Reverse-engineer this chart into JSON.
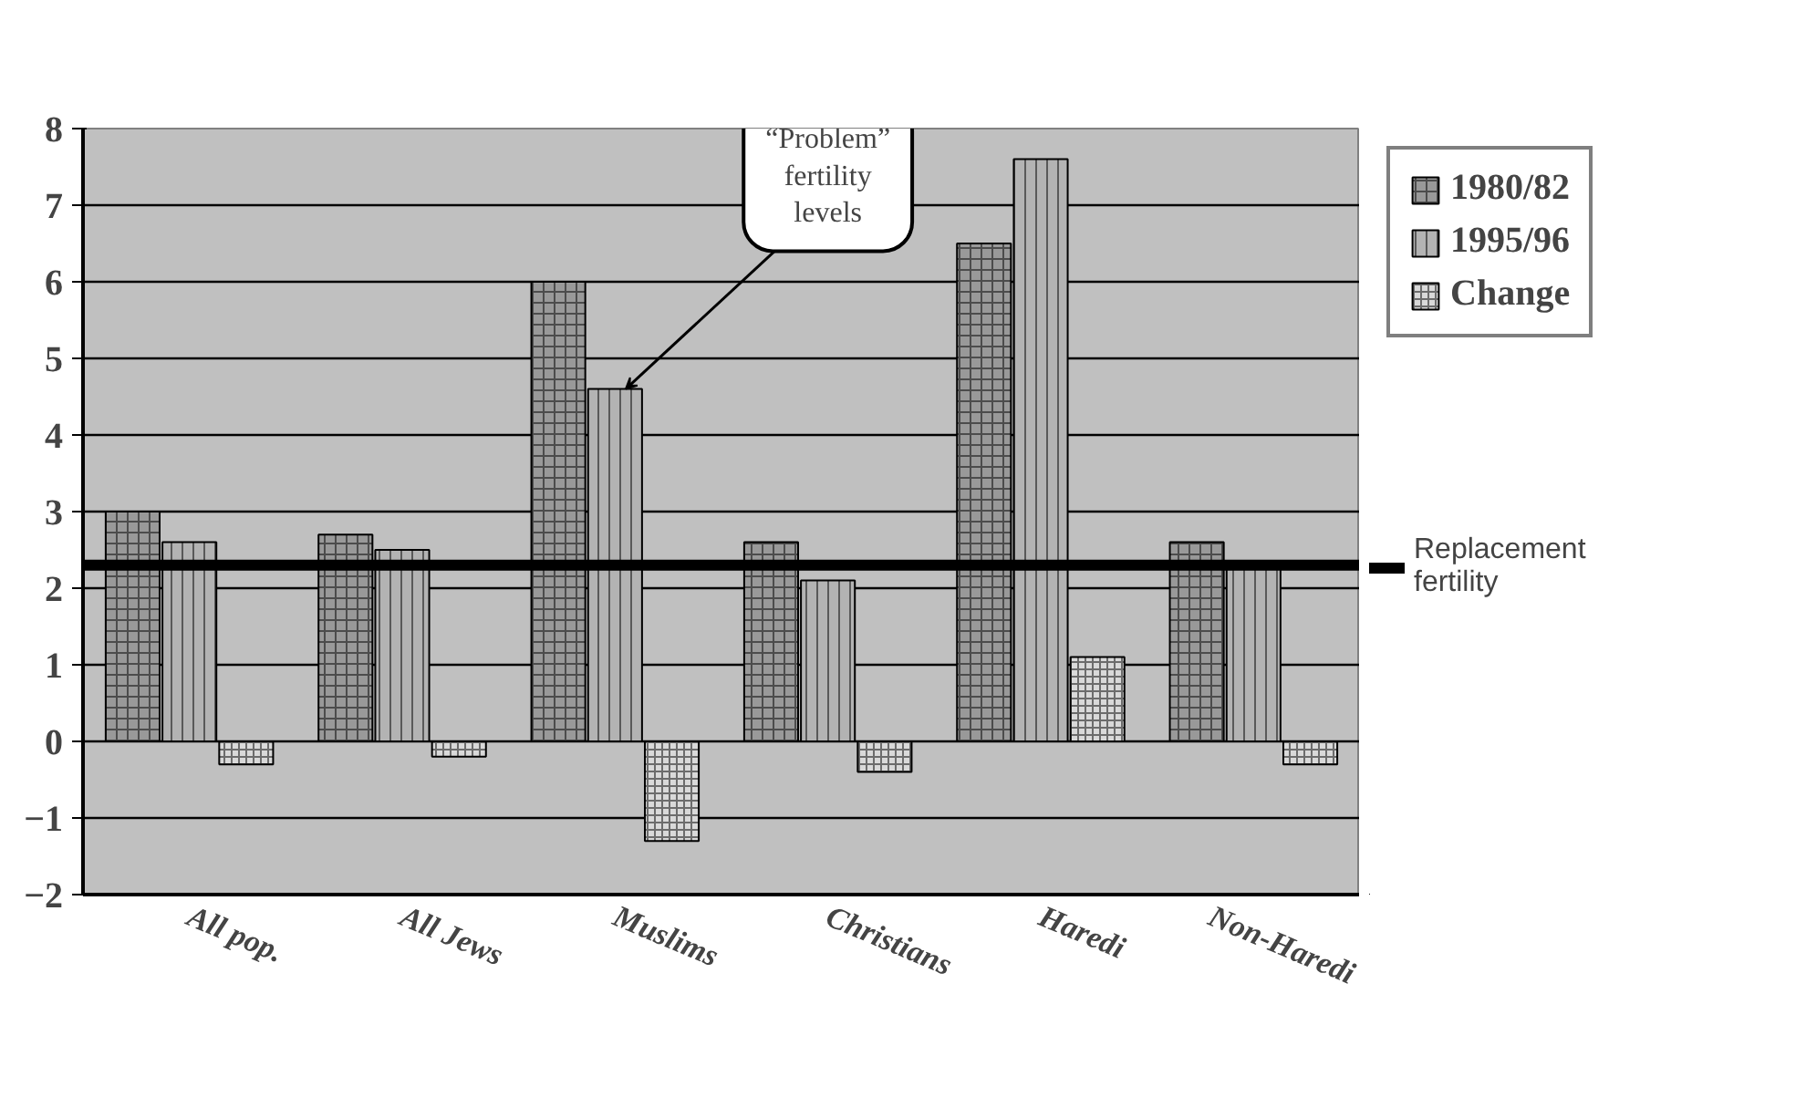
{
  "chart_data": {
    "type": "bar",
    "categories": [
      "All pop.",
      "All Jews",
      "Muslims",
      "Christians",
      "Haredi",
      "Non-Haredi"
    ],
    "series": [
      {
        "name": "1980/82",
        "color": "#999999",
        "values": [
          3.0,
          2.7,
          6.0,
          2.6,
          6.5,
          2.6
        ]
      },
      {
        "name": "1995/96",
        "color": "#b3b3b3",
        "values": [
          2.6,
          2.5,
          4.6,
          2.1,
          7.6,
          2.3
        ]
      },
      {
        "name": "Change",
        "color": "#d9d9d9",
        "values": [
          -0.3,
          -0.2,
          -1.3,
          -0.4,
          1.1,
          -0.3
        ]
      }
    ],
    "ylim": [
      -2,
      8
    ],
    "yticks": [
      -2,
      -1,
      0,
      1,
      2,
      3,
      4,
      5,
      6,
      7,
      8
    ],
    "grid": "y",
    "legend": "top right",
    "ref_lines": [
      {
        "axis": "y",
        "value": 2.3,
        "label": "Replacement fertility",
        "color": "#000000"
      }
    ],
    "annotations": [
      {
        "text": "“Problem” fertility levels",
        "x": "Muslims",
        "y": 4.6
      }
    ]
  }
}
